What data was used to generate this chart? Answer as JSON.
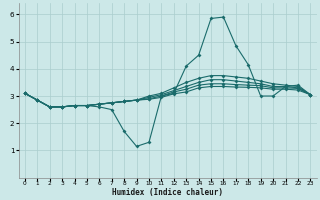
{
  "xlabel": "Humidex (Indice chaleur)",
  "background_color": "#cce8e8",
  "grid_color": "#aacece",
  "line_color": "#1a6b6b",
  "xlim": [
    -0.5,
    23.5
  ],
  "ylim": [
    0,
    6.4
  ],
  "xticks": [
    0,
    1,
    2,
    3,
    4,
    5,
    6,
    7,
    8,
    9,
    10,
    11,
    12,
    13,
    14,
    15,
    16,
    17,
    18,
    19,
    20,
    21,
    22,
    23
  ],
  "yticks": [
    1,
    2,
    3,
    4,
    5,
    6
  ],
  "hours": [
    0,
    1,
    2,
    3,
    4,
    5,
    6,
    7,
    8,
    9,
    10,
    11,
    12,
    13,
    14,
    15,
    16,
    17,
    18,
    19,
    20,
    21,
    22,
    23
  ],
  "curve_main": [
    3.1,
    2.85,
    2.6,
    2.6,
    2.65,
    2.65,
    2.6,
    2.5,
    1.7,
    1.15,
    1.3,
    3.0,
    3.1,
    4.1,
    4.5,
    5.85,
    5.9,
    4.85,
    4.15,
    3.0,
    3.0,
    3.35,
    3.4,
    3.05
  ],
  "curve_a": [
    3.1,
    2.85,
    2.6,
    2.6,
    2.65,
    2.65,
    2.7,
    2.75,
    2.8,
    2.85,
    3.0,
    3.1,
    3.3,
    3.5,
    3.65,
    3.75,
    3.75,
    3.7,
    3.65,
    3.55,
    3.45,
    3.4,
    3.35,
    3.05
  ],
  "curve_b": [
    3.1,
    2.85,
    2.6,
    2.6,
    2.65,
    2.65,
    2.7,
    2.75,
    2.8,
    2.85,
    2.95,
    3.05,
    3.2,
    3.35,
    3.5,
    3.6,
    3.6,
    3.55,
    3.5,
    3.45,
    3.35,
    3.35,
    3.3,
    3.05
  ],
  "curve_c": [
    3.1,
    2.85,
    2.6,
    2.6,
    2.65,
    2.65,
    2.7,
    2.75,
    2.8,
    2.85,
    2.9,
    3.0,
    3.15,
    3.25,
    3.4,
    3.45,
    3.45,
    3.42,
    3.4,
    3.38,
    3.3,
    3.3,
    3.28,
    3.05
  ],
  "curve_d": [
    3.1,
    2.85,
    2.6,
    2.6,
    2.65,
    2.65,
    2.7,
    2.75,
    2.8,
    2.85,
    2.88,
    2.95,
    3.08,
    3.15,
    3.3,
    3.35,
    3.35,
    3.33,
    3.32,
    3.3,
    3.25,
    3.25,
    3.22,
    3.05
  ]
}
